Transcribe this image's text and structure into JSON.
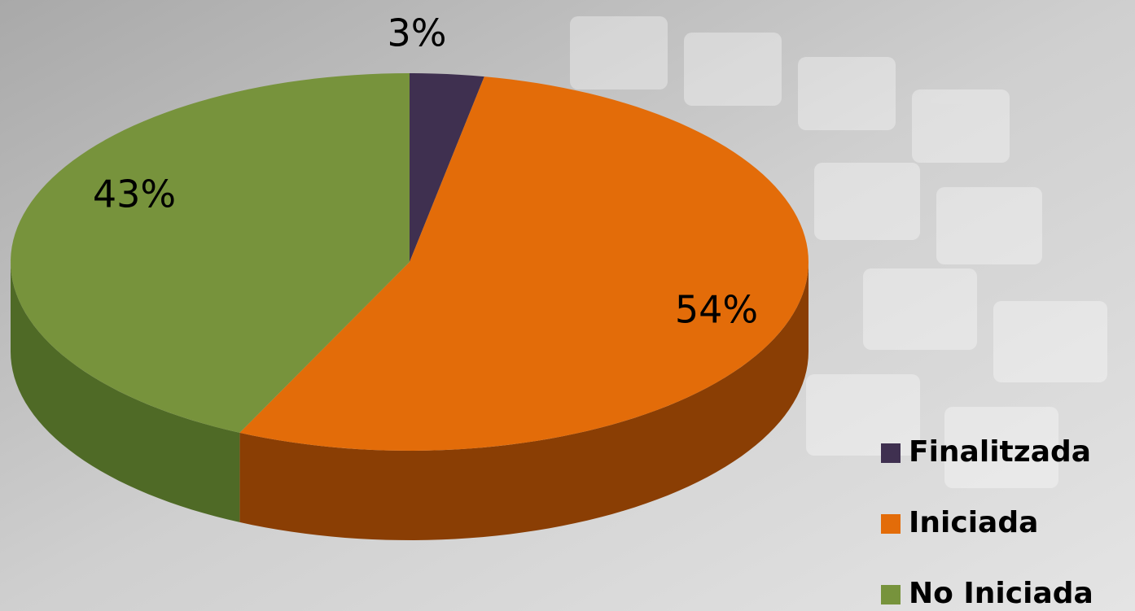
{
  "chart_data": {
    "type": "pie",
    "categories": [
      "Finalitzada",
      "Iniciada",
      "No Iniciada"
    ],
    "values": [
      3,
      54,
      43
    ],
    "value_labels": [
      "3%",
      "54%",
      "43%"
    ],
    "colors": [
      "#3f3050",
      "#e36c09",
      "#77933c"
    ],
    "side_colors": [
      "#2a1f36",
      "#8a3e04",
      "#4f6a26"
    ]
  }
}
